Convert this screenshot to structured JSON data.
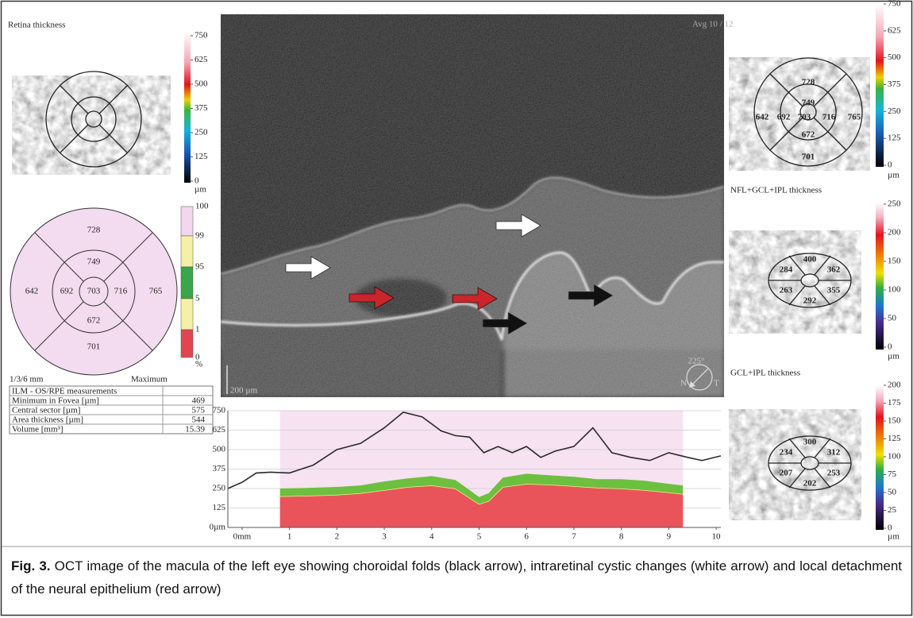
{
  "left_panel": {
    "title": "Retina thickness",
    "thickness_scale": {
      "ticks": [
        750,
        625,
        500,
        375,
        250,
        125,
        0
      ],
      "unit": "µm"
    },
    "sectors": [
      728,
      749,
      642,
      692,
      703,
      716,
      765,
      672,
      701
    ],
    "normative_scale": {
      "ticks": [
        100,
        99,
        95,
        5,
        1,
        0
      ],
      "unit": "%"
    },
    "grid_label": "1/3/6 mm",
    "mode_label": "Maximum"
  },
  "table": {
    "header": "ILM - OS/RPE measurements",
    "rows": [
      [
        "Minimum in Fovea [µm]",
        469
      ],
      [
        "Central sector [µm]",
        575
      ],
      [
        "Area thickness [µm]",
        544
      ],
      [
        "Volume [mm³]",
        15.39
      ]
    ]
  },
  "oct_image": {
    "avg_label": "Avg 10 / 12",
    "scale_label": "200 µm",
    "angle_label": "225°",
    "nasal_label": "N",
    "temporal_label": "T"
  },
  "chart_data": {
    "type": "line",
    "color": "#2a2a2a",
    "x": [
      -0.3,
      0,
      0.3,
      0.6,
      1,
      1.5,
      2,
      2.5,
      3,
      3.4,
      3.8,
      4.2,
      4.5,
      4.8,
      5.1,
      5.4,
      5.7,
      6,
      6.3,
      6.6,
      7,
      7.4,
      7.8,
      8.2,
      8.6,
      9,
      9.4,
      9.7,
      10.1
    ],
    "values": [
      250,
      290,
      350,
      355,
      350,
      400,
      500,
      540,
      640,
      740,
      710,
      620,
      590,
      580,
      480,
      520,
      480,
      520,
      450,
      490,
      520,
      640,
      480,
      450,
      430,
      480,
      450,
      430,
      460
    ],
    "xlim": [
      -0.3,
      10.1
    ],
    "ylim": [
      0,
      750
    ],
    "xticks": [
      {
        "value": 0,
        "label": "0mm"
      },
      1,
      2,
      3,
      4,
      5,
      6,
      7,
      8,
      9,
      10
    ],
    "yticks": [
      {
        "value": 0,
        "label": "0µm"
      },
      125,
      250,
      375,
      500,
      625,
      750
    ],
    "grid": true,
    "shaded_range": [
      0.8,
      9.3
    ],
    "shade_color": "#f6e2f1",
    "layers": {
      "x": [
        0.8,
        1.5,
        2,
        2.5,
        3,
        3.5,
        4,
        4.5,
        4.8,
        5,
        5.2,
        5.5,
        6,
        6.5,
        7,
        7.5,
        8,
        8.5,
        9,
        9.3
      ],
      "series": [
        {
          "color": "#e9545a",
          "values": [
            200,
            205,
            210,
            220,
            240,
            260,
            270,
            250,
            190,
            150,
            170,
            260,
            280,
            275,
            265,
            255,
            250,
            240,
            225,
            215
          ]
        },
        {
          "color": "#6dbf3f",
          "values": [
            50,
            50,
            50,
            50,
            55,
            55,
            60,
            55,
            50,
            45,
            50,
            60,
            65,
            60,
            60,
            55,
            60,
            60,
            55,
            55
          ]
        }
      ]
    }
  },
  "right_panel": {
    "retina_map": {
      "sectors": [
        728,
        749,
        642,
        692,
        703,
        716,
        765,
        672,
        701
      ],
      "scale": {
        "ticks": [
          750,
          625,
          500,
          375,
          250,
          125,
          0
        ],
        "unit": "µm"
      }
    },
    "nfl_map": {
      "title": "NFL+GCL+IPL thickness",
      "sectors": [
        400,
        284,
        362,
        263,
        355,
        292
      ],
      "scale": {
        "ticks": [
          250,
          200,
          150,
          100,
          50,
          0
        ],
        "unit": "µm"
      }
    },
    "gcl_map": {
      "title": "GCL+IPL thickness",
      "sectors": [
        300,
        234,
        312,
        207,
        253,
        202
      ],
      "scale": {
        "ticks": [
          200,
          175,
          150,
          125,
          100,
          75,
          50,
          25,
          0
        ],
        "unit": "µm"
      }
    }
  },
  "caption": {
    "label": "Fig. 3.",
    "text": "OCT image of the macula of the left eye showing choroidal folds (black arrow), intraretinal cystic changes (white arrow) and local detachment of the neural epithelium (red arrow)"
  }
}
